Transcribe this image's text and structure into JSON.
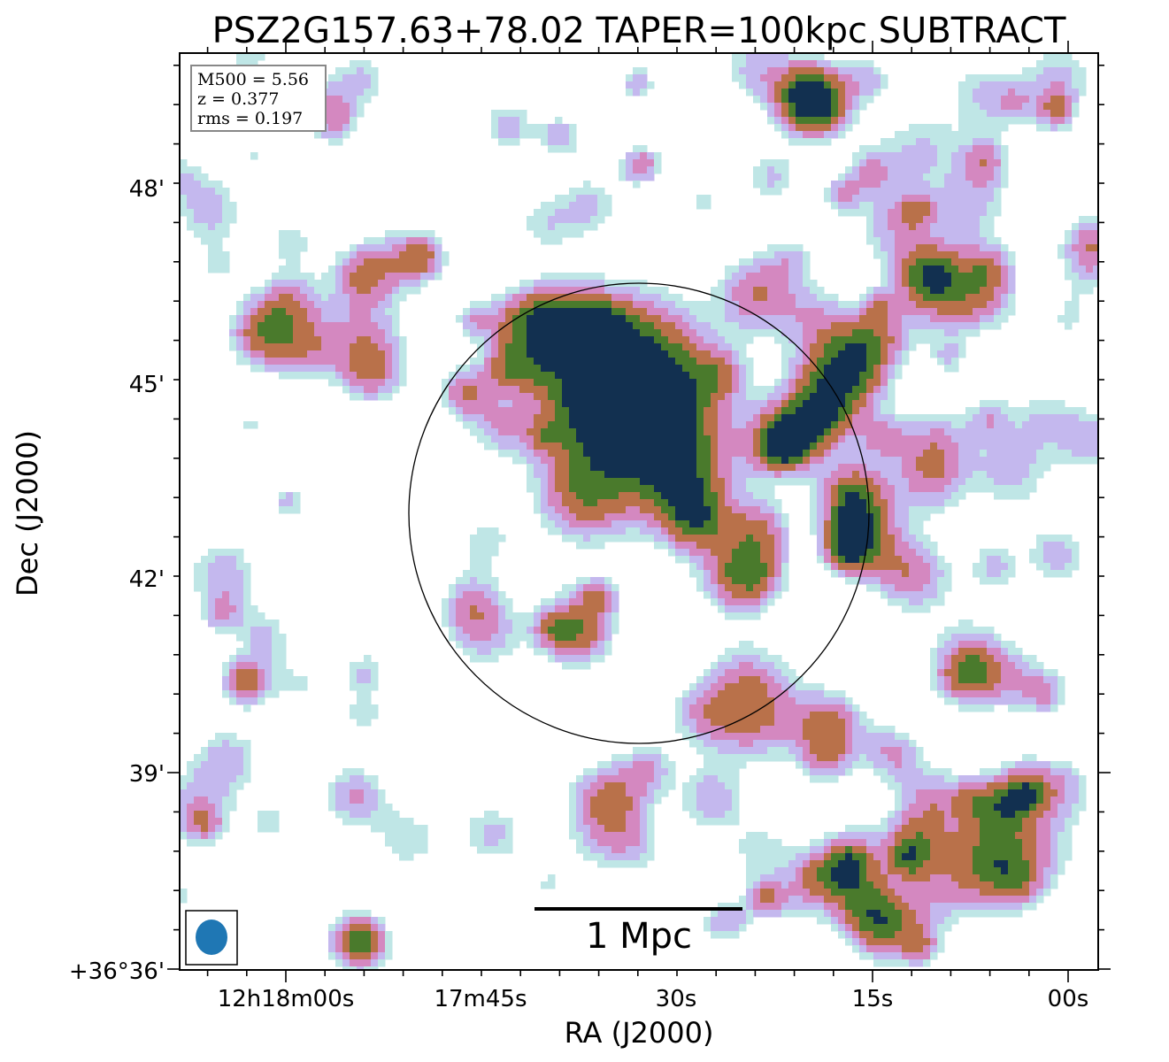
{
  "chart_data": {
    "type": "heatmap",
    "title": "PSZ2G157.63+78.02 TAPER=100kpc SUBTRACT",
    "xlabel": "RA (J2000)",
    "ylabel": "Dec (J2000)",
    "x_ticks": [
      "12h18m00s",
      "17m45s",
      "30s",
      "15s",
      "00s"
    ],
    "y_ticks": [
      "+36°36'",
      "39'",
      "42'",
      "45'",
      "48'"
    ],
    "info_lines": [
      "M500 = 5.56",
      "z = 0.377",
      "rms = 0.197"
    ],
    "scalebar_label": "1 Mpc",
    "colormap": [
      "#ffffff",
      "#bfe6e6",
      "#c4b8ee",
      "#d488c0",
      "#b9714a",
      "#4a7a2c",
      "#123050"
    ],
    "blobs": [
      {
        "x": 0.495,
        "y": 0.395,
        "a": 0.07,
        "amp": 1.0
      },
      {
        "x": 0.48,
        "y": 0.34,
        "a": 0.05,
        "amp": 0.55
      },
      {
        "x": 0.37,
        "y": 0.3,
        "a": 0.03,
        "amp": 0.55
      },
      {
        "x": 0.31,
        "y": 0.37,
        "a": 0.02,
        "amp": 0.5
      },
      {
        "x": 0.72,
        "y": 0.35,
        "a": 0.035,
        "amp": 0.6
      },
      {
        "x": 0.63,
        "y": 0.26,
        "a": 0.03,
        "amp": 0.5
      },
      {
        "x": 0.66,
        "y": 0.42,
        "a": 0.025,
        "amp": 0.5
      },
      {
        "x": 0.73,
        "y": 0.48,
        "a": 0.025,
        "amp": 0.45
      },
      {
        "x": 0.07,
        "y": 0.685,
        "a": 0.018,
        "amp": 0.6
      },
      {
        "x": 0.19,
        "y": 0.81,
        "a": 0.025,
        "amp": 0.42
      },
      {
        "x": 0.62,
        "y": 0.69,
        "a": 0.035,
        "amp": 0.45
      },
      {
        "x": 0.8,
        "y": 0.57,
        "a": 0.03,
        "amp": 0.45
      },
      {
        "x": 0.83,
        "y": 0.26,
        "a": 0.035,
        "amp": 0.4
      },
      {
        "x": 0.69,
        "y": 0.055,
        "a": 0.025,
        "amp": 0.5
      },
      {
        "x": 0.2,
        "y": 0.97,
        "a": 0.02,
        "amp": 0.5
      },
      {
        "x": 0.8,
        "y": 0.86,
        "a": 0.025,
        "amp": 0.42
      },
      {
        "x": 0.21,
        "y": 0.35,
        "a": 0.025,
        "amp": 0.4
      },
      {
        "x": 0.12,
        "y": 0.27,
        "a": 0.025,
        "amp": 0.35
      },
      {
        "x": 0.51,
        "y": 0.78,
        "a": 0.02,
        "amp": 0.35
      },
      {
        "x": 0.34,
        "y": 0.85,
        "a": 0.025,
        "amp": 0.33
      }
    ],
    "noise_seed": 7
  }
}
